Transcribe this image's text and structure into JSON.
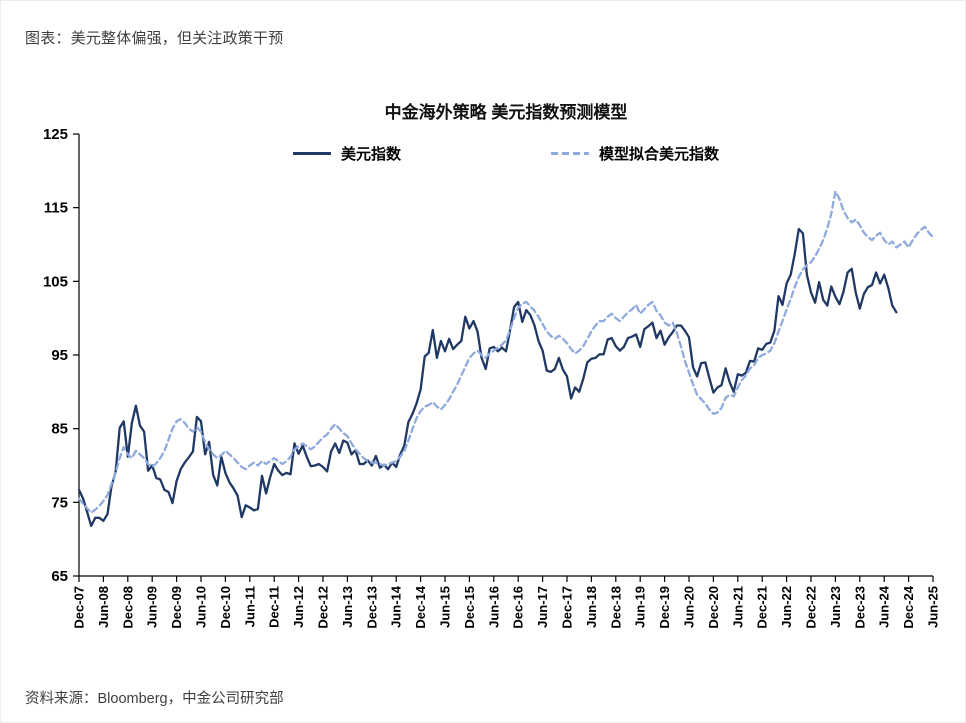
{
  "header": {
    "title": "图表：美元整体偏强，但关注政策干预"
  },
  "footer": {
    "source": "资料来源：Bloomberg，中金公司研究部"
  },
  "chart_data": {
    "type": "line",
    "title": "中金海外策略 美元指数预测模型",
    "frequency": "monthly",
    "grid": false,
    "legend_position": "top-center",
    "ylim": [
      65,
      125
    ],
    "yticks": [
      65,
      75,
      85,
      95,
      105,
      115,
      125
    ],
    "n_points": 211,
    "x_tick_every": 6,
    "x_tick_labels": [
      "Dec-07",
      "Jun-08",
      "Dec-08",
      "Jun-09",
      "Dec-09",
      "Jun-10",
      "Dec-10",
      "Jun-11",
      "Dec-11",
      "Jun-12",
      "Dec-12",
      "Jun-13",
      "Dec-13",
      "Jun-14",
      "Dec-14",
      "Jun-15",
      "Dec-15",
      "Jun-16",
      "Dec-16",
      "Jun-17",
      "Dec-17",
      "Jun-18",
      "Dec-18",
      "Jun-19",
      "Dec-19",
      "Jun-20",
      "Dec-20",
      "Jun-21",
      "Dec-21",
      "Jun-22",
      "Dec-22",
      "Jun-23",
      "Dec-23",
      "Jun-24",
      "Dec-24",
      "Jun-25"
    ],
    "series": [
      {
        "name": "美元指数",
        "color": "#1F3864",
        "style": "solid",
        "values": [
          76.7,
          75.5,
          73.7,
          71.8,
          72.9,
          72.9,
          72.5,
          73.4,
          77.2,
          79.1,
          85.1,
          86.0,
          81.2,
          85.8,
          88.1,
          85.4,
          84.6,
          79.3,
          80.0,
          78.3,
          78.1,
          76.7,
          76.4,
          74.9,
          77.9,
          79.5,
          80.4,
          81.1,
          81.9,
          86.6,
          86.0,
          81.5,
          83.2,
          78.7,
          77.3,
          81.2,
          79.0,
          77.7,
          76.9,
          75.9,
          73.0,
          74.6,
          74.3,
          73.9,
          74.1,
          78.6,
          76.2,
          78.4,
          80.2,
          79.3,
          78.7,
          79.0,
          78.8,
          83.0,
          81.6,
          82.7,
          81.2,
          79.9,
          80.0,
          80.2,
          79.8,
          79.2,
          81.9,
          83.0,
          81.7,
          83.4,
          83.1,
          81.5,
          82.1,
          80.2,
          80.2,
          80.7,
          80.0,
          81.3,
          79.7,
          80.1,
          79.5,
          80.4,
          79.8,
          81.5,
          82.7,
          85.9,
          87.0,
          88.4,
          90.3,
          94.8,
          95.3,
          98.4,
          94.6,
          96.9,
          95.5,
          97.2,
          95.8,
          96.4,
          96.9,
          100.2,
          98.6,
          99.6,
          98.2,
          94.6,
          93.1,
          95.9,
          96.1,
          95.5,
          96.0,
          95.5,
          98.4,
          101.5,
          102.2,
          99.5,
          101.1,
          100.4,
          99.0,
          96.9,
          95.6,
          92.9,
          92.7,
          93.1,
          94.6,
          93.0,
          92.1,
          89.1,
          90.6,
          90.0,
          91.8,
          94.0,
          94.5,
          94.6,
          95.1,
          95.1,
          97.1,
          97.3,
          96.2,
          95.6,
          96.1,
          97.3,
          97.5,
          97.8,
          96.1,
          98.5,
          98.9,
          99.4,
          97.3,
          98.3,
          96.4,
          97.4,
          98.1,
          99.0,
          99.0,
          98.3,
          97.4,
          93.3,
          92.1,
          93.9,
          94.0,
          91.9,
          89.9,
          90.6,
          90.9,
          93.2,
          91.3,
          90.0,
          92.4,
          92.2,
          92.6,
          94.2,
          94.1,
          95.9,
          95.7,
          96.5,
          96.7,
          98.3,
          103.0,
          101.8,
          104.7,
          105.9,
          108.7,
          112.1,
          111.5,
          105.9,
          103.5,
          102.1,
          104.9,
          102.5,
          101.7,
          104.3,
          102.9,
          101.9,
          103.6,
          106.2,
          106.7,
          103.5,
          101.3,
          103.3,
          104.2,
          104.5,
          106.2,
          104.7,
          105.9,
          104.1,
          101.7,
          100.8
        ]
      },
      {
        "name": "模型拟合美元指数",
        "color": "#8FAADC",
        "style": "dashed",
        "values": [
          75.5,
          74.8,
          74.2,
          73.6,
          74.0,
          74.5,
          75.2,
          76.0,
          77.5,
          79.0,
          81.0,
          82.5,
          81.5,
          81.0,
          82.0,
          81.5,
          81.0,
          80.2,
          79.8,
          80.3,
          81.0,
          82.0,
          83.5,
          85.0,
          86.0,
          86.3,
          85.8,
          85.0,
          84.6,
          85.2,
          84.6,
          83.2,
          82.2,
          81.5,
          81.0,
          81.4,
          82.0,
          81.5,
          81.0,
          80.4,
          79.8,
          79.5,
          80.0,
          80.4,
          80.0,
          80.6,
          80.2,
          80.6,
          81.0,
          80.6,
          80.2,
          80.6,
          81.2,
          82.2,
          82.6,
          83.0,
          82.6,
          82.2,
          82.6,
          83.2,
          83.8,
          84.2,
          85.0,
          85.6,
          85.0,
          84.4,
          84.0,
          83.0,
          82.2,
          81.6,
          81.0,
          80.6,
          80.4,
          80.4,
          80.2,
          80.0,
          80.2,
          80.4,
          80.6,
          81.2,
          82.0,
          83.4,
          85.0,
          86.4,
          87.4,
          88.0,
          88.2,
          88.6,
          88.0,
          87.6,
          88.2,
          89.0,
          90.0,
          91.0,
          92.2,
          93.4,
          94.6,
          95.2,
          95.6,
          95.0,
          94.6,
          95.2,
          95.6,
          96.0,
          96.4,
          97.0,
          98.4,
          100.0,
          101.4,
          102.0,
          102.2,
          101.6,
          101.0,
          100.2,
          99.2,
          98.2,
          97.6,
          97.2,
          97.6,
          97.2,
          96.6,
          95.8,
          95.2,
          95.6,
          96.2,
          97.2,
          98.2,
          99.0,
          99.6,
          99.6,
          100.2,
          100.6,
          100.0,
          99.6,
          100.2,
          100.8,
          101.2,
          101.8,
          100.6,
          101.2,
          101.8,
          102.2,
          101.0,
          100.4,
          99.4,
          99.0,
          99.4,
          98.0,
          96.2,
          94.2,
          92.6,
          91.0,
          89.6,
          89.0,
          88.4,
          87.6,
          87.0,
          87.2,
          87.8,
          89.2,
          89.6,
          89.4,
          90.6,
          91.6,
          92.2,
          93.2,
          93.6,
          94.6,
          95.0,
          95.2,
          95.6,
          96.6,
          98.2,
          99.6,
          101.2,
          102.6,
          104.2,
          105.6,
          106.6,
          107.2,
          107.6,
          108.4,
          109.4,
          110.6,
          112.2,
          114.2,
          117.2,
          116.2,
          114.6,
          113.6,
          113.0,
          113.4,
          112.6,
          111.6,
          111.0,
          110.6,
          111.2,
          111.6,
          110.6,
          110.0,
          110.4,
          109.6,
          110.0,
          110.4,
          109.6,
          110.6,
          111.4,
          112.0,
          112.4,
          111.6,
          111.0
        ]
      }
    ]
  }
}
